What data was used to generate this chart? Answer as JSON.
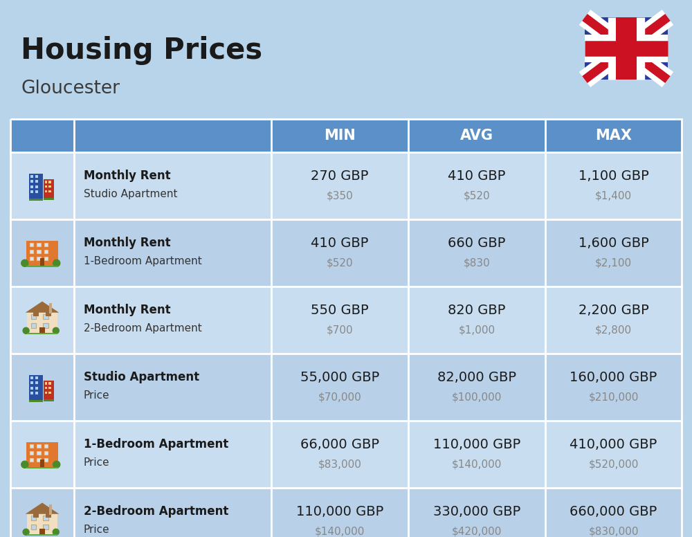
{
  "title": "Housing Prices",
  "subtitle": "Gloucester",
  "background_color": "#b8d4eb",
  "header_color": "#5b91c8",
  "header_text_color": "#ffffff",
  "row_bg_alt1": "#c8ddf0",
  "row_bg_alt2": "#b8d0e8",
  "col_headers": [
    "MIN",
    "AVG",
    "MAX"
  ],
  "rows": [
    {
      "bold_label": "Monthly Rent",
      "sub_label": "Studio Apartment",
      "min_gbp": "270 GBP",
      "min_usd": "$350",
      "avg_gbp": "410 GBP",
      "avg_usd": "$520",
      "max_gbp": "1,100 GBP",
      "max_usd": "$1,400",
      "icon_type": "studio_blue"
    },
    {
      "bold_label": "Monthly Rent",
      "sub_label": "1-Bedroom Apartment",
      "min_gbp": "410 GBP",
      "min_usd": "$520",
      "avg_gbp": "660 GBP",
      "avg_usd": "$830",
      "max_gbp": "1,600 GBP",
      "max_usd": "$2,100",
      "icon_type": "one_bed_orange"
    },
    {
      "bold_label": "Monthly Rent",
      "sub_label": "2-Bedroom Apartment",
      "min_gbp": "550 GBP",
      "min_usd": "$700",
      "avg_gbp": "820 GBP",
      "avg_usd": "$1,000",
      "max_gbp": "2,200 GBP",
      "max_usd": "$2,800",
      "icon_type": "two_bed_beige"
    },
    {
      "bold_label": "Studio Apartment",
      "sub_label": "Price",
      "min_gbp": "55,000 GBP",
      "min_usd": "$70,000",
      "avg_gbp": "82,000 GBP",
      "avg_usd": "$100,000",
      "max_gbp": "160,000 GBP",
      "max_usd": "$210,000",
      "icon_type": "studio_blue"
    },
    {
      "bold_label": "1-Bedroom Apartment",
      "sub_label": "Price",
      "min_gbp": "66,000 GBP",
      "min_usd": "$83,000",
      "avg_gbp": "110,000 GBP",
      "avg_usd": "$140,000",
      "max_gbp": "410,000 GBP",
      "max_usd": "$520,000",
      "icon_type": "one_bed_orange"
    },
    {
      "bold_label": "2-Bedroom Apartment",
      "sub_label": "Price",
      "min_gbp": "110,000 GBP",
      "min_usd": "$140,000",
      "avg_gbp": "330,000 GBP",
      "avg_usd": "$420,000",
      "max_gbp": "660,000 GBP",
      "max_usd": "$830,000",
      "icon_type": "two_bed_beige"
    }
  ],
  "title_fontsize": 30,
  "subtitle_fontsize": 19,
  "header_fontsize": 15,
  "cell_fontsize": 14,
  "cell_subfontsize": 11
}
